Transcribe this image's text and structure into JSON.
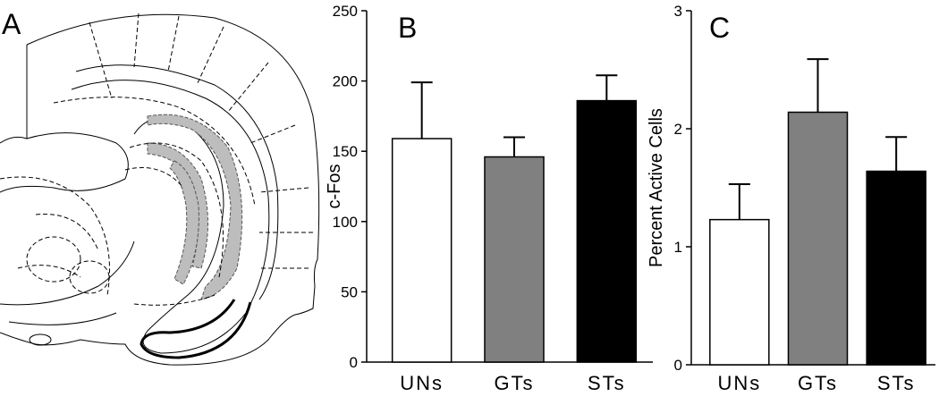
{
  "drawing": {
    "label": "A"
  },
  "chart_data": [
    {
      "type": "bar",
      "label": "B",
      "ylabel": "c-Fos",
      "categories": [
        "UNs",
        "GTs",
        "STs"
      ],
      "values": [
        159,
        146,
        186
      ],
      "errors": [
        40,
        14,
        18
      ],
      "colors": [
        "#ffffff",
        "#808080",
        "#000000"
      ],
      "ylim": [
        0,
        250
      ],
      "yticks": [
        0,
        50,
        100,
        150,
        200,
        250
      ]
    },
    {
      "type": "bar",
      "label": "C",
      "ylabel": "Percent Active Cells",
      "categories": [
        "UNs",
        "GTs",
        "STs"
      ],
      "values": [
        1.23,
        2.14,
        1.64
      ],
      "errors": [
        0.3,
        0.45,
        0.29
      ],
      "colors": [
        "#ffffff",
        "#808080",
        "#000000"
      ],
      "ylim": [
        0,
        3
      ],
      "yticks": [
        0,
        1,
        2,
        3
      ]
    }
  ]
}
